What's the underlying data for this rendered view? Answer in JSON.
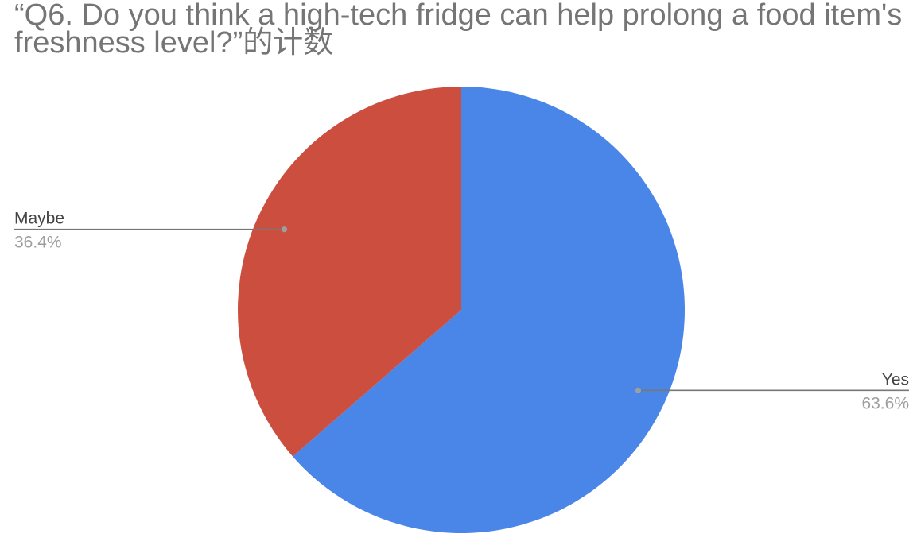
{
  "chart_data": {
    "type": "pie",
    "title": "“Q6. Do you think a high-tech fridge can help prolong a food item's freshness level?”的计数",
    "slices": [
      {
        "label": "Yes",
        "value": 63.6,
        "percent_label": "63.6%",
        "color": "#4a86e8",
        "label_side": "right"
      },
      {
        "label": "Maybe",
        "value": 36.4,
        "percent_label": "36.4%",
        "color": "#cc4e3f",
        "label_side": "left"
      }
    ],
    "legend": "none",
    "leader_line_color": "#777777",
    "leader_dot_color": "#9e9e9e"
  }
}
